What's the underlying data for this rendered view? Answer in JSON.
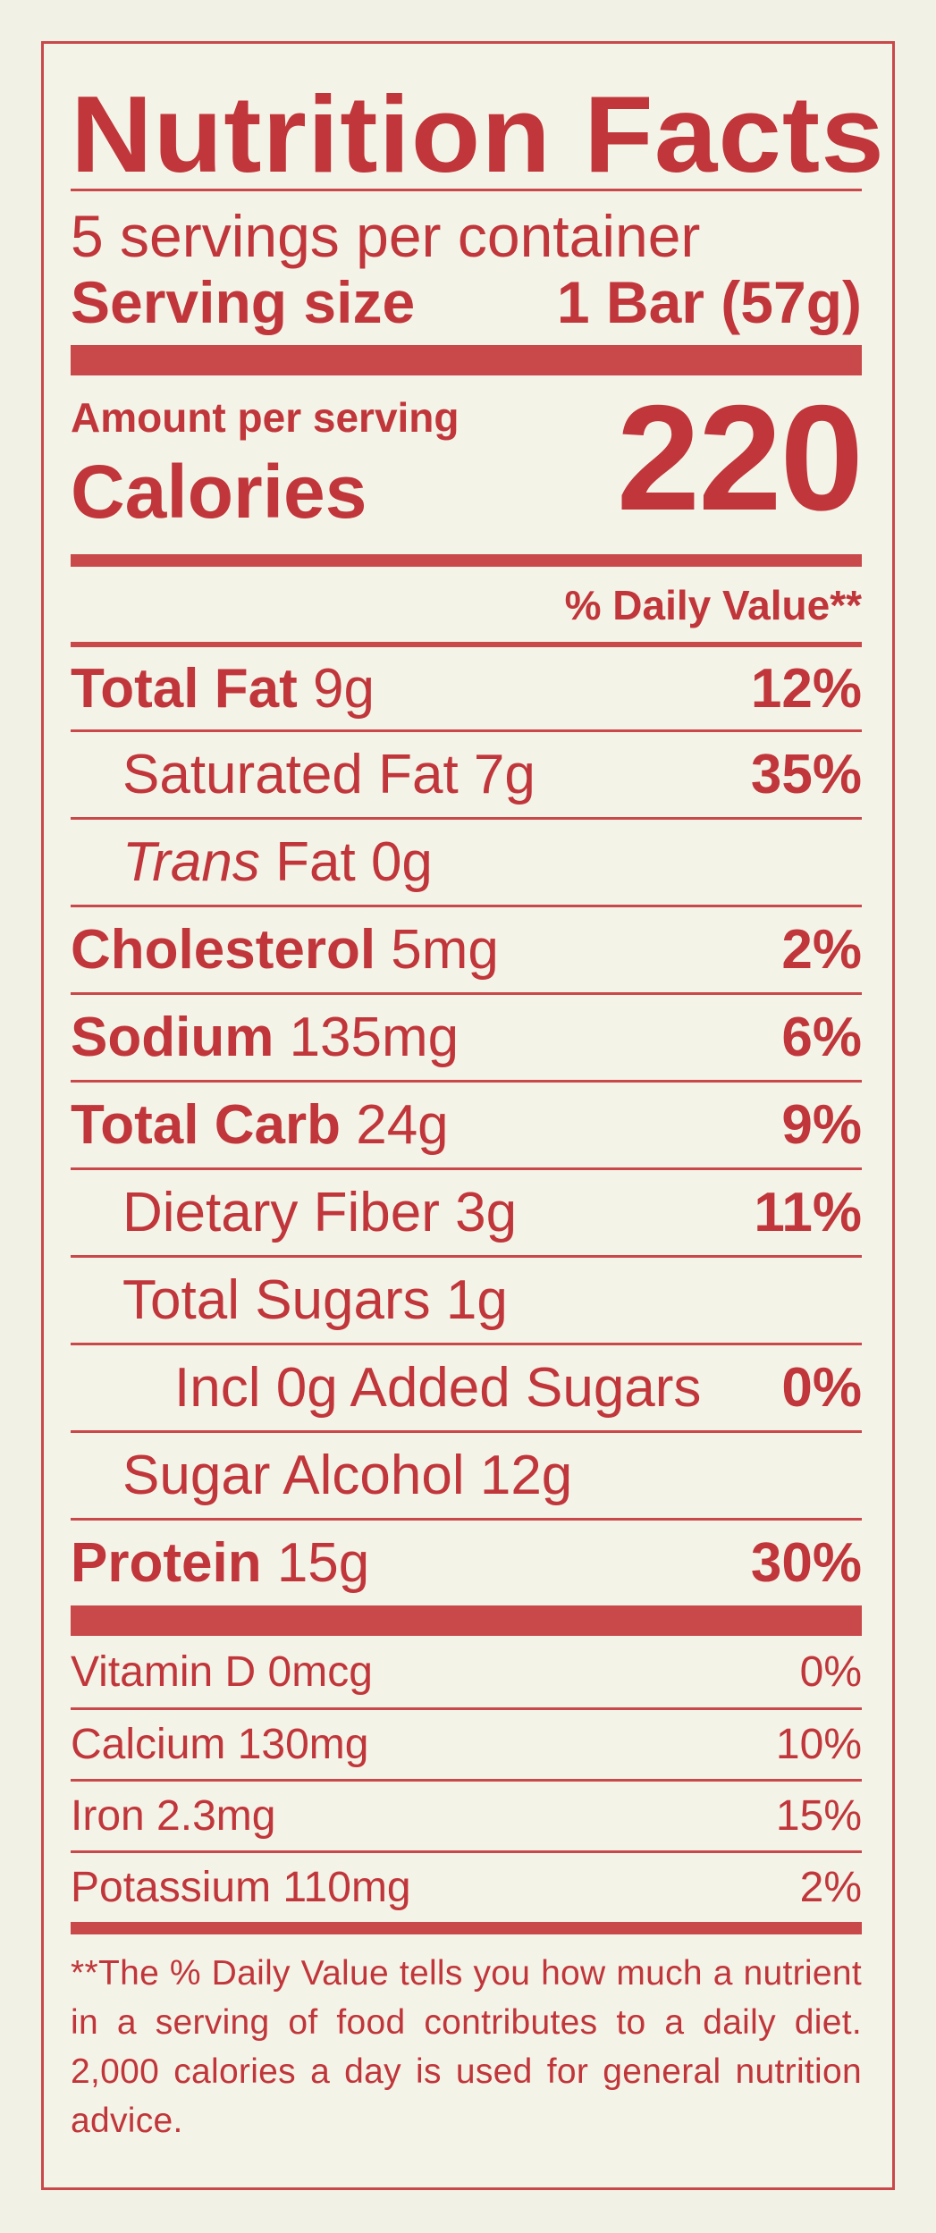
{
  "title": "Nutrition Facts",
  "servings_per_container": "5 servings per container",
  "serving_size_label": "Serving size",
  "serving_size_value": "1 Bar (57g)",
  "amount_per_serving": "Amount per serving",
  "calories_label": "Calories",
  "calories_value": "220",
  "daily_value_header": "% Daily Value**",
  "nutrients": [
    {
      "name": "Total Fat",
      "amount": "9g",
      "dv": "12%"
    },
    {
      "name": "Saturated Fat",
      "amount": "7g",
      "dv": "35%"
    },
    {
      "name_italic": "Trans",
      "name": "Fat",
      "amount": "0g",
      "dv": ""
    },
    {
      "name": "Cholesterol",
      "amount": "5mg",
      "dv": "2%"
    },
    {
      "name": "Sodium",
      "amount": "135mg",
      "dv": "6%"
    },
    {
      "name": "Total Carb",
      "amount": "24g",
      "dv": "9%"
    },
    {
      "name": "Dietary Fiber",
      "amount": "3g",
      "dv": "11%"
    },
    {
      "name": "Total Sugars",
      "amount": "1g",
      "dv": ""
    },
    {
      "name": "Incl 0g Added Sugars",
      "amount": "",
      "dv": "0%"
    },
    {
      "name": "Sugar Alcohol",
      "amount": "12g",
      "dv": ""
    },
    {
      "name": "Protein",
      "amount": "15g",
      "dv": "30%"
    }
  ],
  "vitamins": [
    {
      "name": "Vitamin D 0mcg",
      "dv": "0%"
    },
    {
      "name": "Calcium 130mg",
      "dv": "10%"
    },
    {
      "name": "Iron 2.3mg",
      "dv": "15%"
    },
    {
      "name": "Potassium 110mg",
      "dv": "2%"
    }
  ],
  "footnote": "**The % Daily Value tells you how much a nutrient in a serving of food contributes to a daily diet. 2,000 calories a day is used for general nutrition advice."
}
